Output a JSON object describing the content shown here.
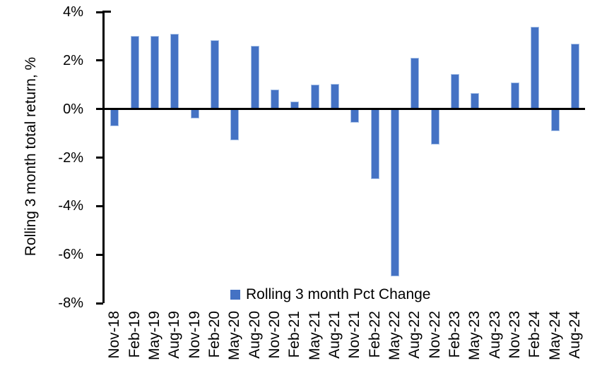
{
  "chart_data": {
    "type": "bar",
    "title": "",
    "ylabel": "Rolling 3 month total return, %",
    "xlabel": "",
    "categories": [
      "Nov-18",
      "Feb-19",
      "May-19",
      "Aug-19",
      "Nov-19",
      "Feb-20",
      "May-20",
      "Aug-20",
      "Nov-20",
      "Feb-21",
      "May-21",
      "Aug-21",
      "Nov-21",
      "Feb-22",
      "May-22",
      "Aug-22",
      "Nov-22",
      "Feb-23",
      "May-23",
      "Aug-23",
      "Nov-23",
      "Feb-24",
      "May-24",
      "Aug-24"
    ],
    "series": [
      {
        "name": "Rolling 3 month Pct Change",
        "values": [
          -0.7,
          3.0,
          3.0,
          3.1,
          -0.4,
          2.85,
          -1.3,
          2.6,
          0.8,
          0.3,
          1.0,
          1.05,
          -0.55,
          -2.9,
          -6.9,
          2.1,
          -1.45,
          1.45,
          0.65,
          0.0,
          1.1,
          3.4,
          -0.9,
          2.7
        ]
      }
    ],
    "ylim": [
      -8,
      4
    ],
    "yticks": [
      4,
      2,
      0,
      -2,
      -4,
      -6,
      -8
    ],
    "ytick_labels": [
      "4%",
      "2%",
      "0%",
      "-2%",
      "-4%",
      "-6%",
      "-8%"
    ],
    "grid": false,
    "legend_position": "bottom-center-inside",
    "colors": {
      "bar_fill": "#4472C4",
      "bar_border": "#A9C2E8",
      "axis": "#000000",
      "text": "#000000",
      "background": "#FFFFFF"
    }
  }
}
